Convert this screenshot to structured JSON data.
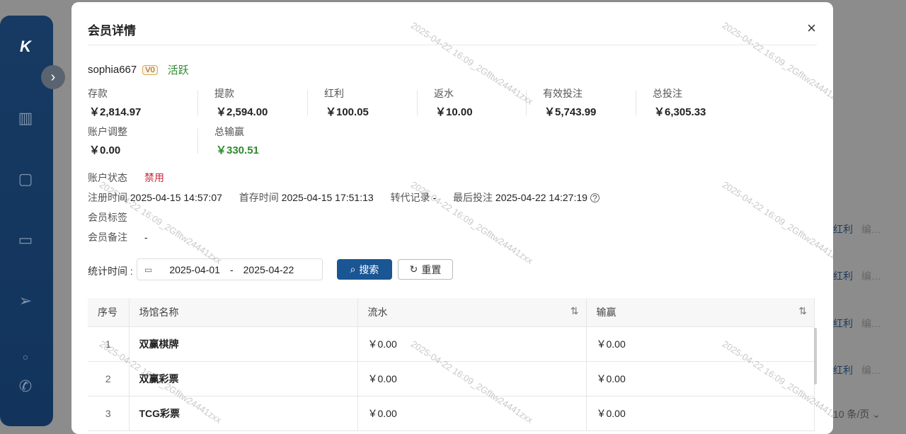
{
  "sidebar": {
    "icons": [
      "logo-icon",
      "chart-icon",
      "user-icon",
      "wallet-icon",
      "send-icon",
      "dot-icon",
      "phone-icon"
    ]
  },
  "background": {
    "rows": [
      {
        "label": "红利",
        "more": "编…"
      },
      {
        "label": "红利",
        "more": "编…"
      },
      {
        "label": "红利",
        "more": "编…"
      },
      {
        "label": "红利",
        "more": "编…"
      }
    ],
    "page_size": "10 条/页"
  },
  "modal": {
    "title": "会员详情",
    "close": "×",
    "user": {
      "name": "sophia667",
      "level": "V0",
      "status": "活跃"
    },
    "stats": [
      {
        "label": "存款",
        "value": "￥2,814.97"
      },
      {
        "label": "提款",
        "value": "￥2,594.00"
      },
      {
        "label": "红利",
        "value": "￥100.05"
      },
      {
        "label": "返水",
        "value": "￥10.00"
      },
      {
        "label": "有效投注",
        "value": "￥5,743.99"
      },
      {
        "label": "总投注",
        "value": "￥6,305.33"
      },
      {
        "label": "账户调整",
        "value": "￥0.00"
      },
      {
        "label": "总输赢",
        "value": "￥330.51"
      }
    ],
    "account_status": {
      "label": "账户状态",
      "value": "禁用"
    },
    "register": {
      "label": "注册时间",
      "value": "2025-04-15 14:57:07"
    },
    "first_deposit": {
      "label": "首存时间",
      "value": "2025-04-15 17:51:13"
    },
    "transfer": {
      "label": "转代记录",
      "value": "-"
    },
    "last_bet": {
      "label": "最后投注",
      "value": "2025-04-22 14:27:19"
    },
    "tags": {
      "label": "会员标签",
      "value": ""
    },
    "remark": {
      "label": "会员备注",
      "value": "-"
    },
    "filter": {
      "label": "统计时间 :",
      "start": "2025-04-01",
      "sep": "-",
      "end": "2025-04-22",
      "search": "搜索",
      "reset": "重置"
    },
    "table": {
      "headers": [
        "序号",
        "场馆名称",
        "流水",
        "输赢"
      ],
      "rows": [
        [
          "1",
          "双赢棋牌",
          "￥0.00",
          "￥0.00"
        ],
        [
          "2",
          "双赢彩票",
          "￥0.00",
          "￥0.00"
        ],
        [
          "3",
          "TCG彩票",
          "￥0.00",
          "￥0.00"
        ]
      ]
    },
    "watermark": "2025-04-22 16:09_2Gfltw24441zxx"
  },
  "colors": {
    "primary": "#1a5594",
    "success": "#2f8a2f",
    "danger": "#c8283c"
  }
}
